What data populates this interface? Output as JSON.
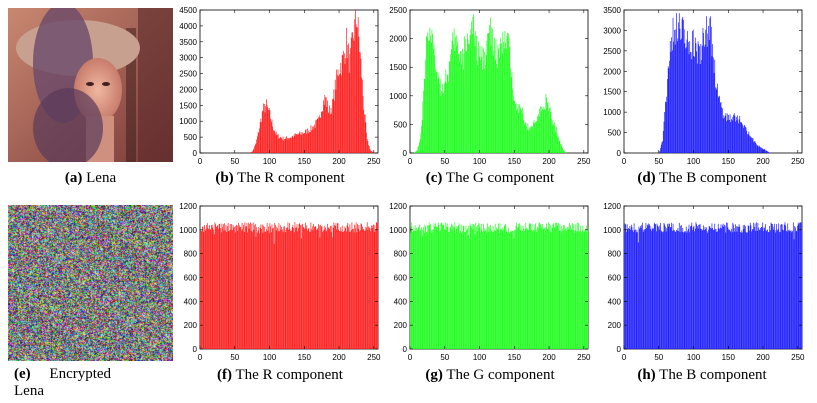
{
  "colors": {
    "red": "#ff2020",
    "green": "#20ff20",
    "blue": "#2020ff",
    "axis": "#000000"
  },
  "images": [
    {
      "id": "a",
      "tag": "(a)",
      "label": "Lena",
      "kind": "photo-lena"
    },
    {
      "id": "e",
      "tag": "(e)",
      "label": "Encrypted",
      "label2": "Lena",
      "kind": "photo-noise"
    }
  ],
  "chart_data": [
    {
      "id": "b",
      "tag": "(b)",
      "caption": "The R component",
      "type": "bar",
      "color": "#ff2020",
      "xlim": [
        0,
        256
      ],
      "xticks": [
        0,
        50,
        100,
        150,
        200,
        250
      ],
      "ylim": [
        0,
        4500
      ],
      "yticks": [
        0,
        500,
        1000,
        1500,
        2000,
        2500,
        3000,
        3500,
        4000,
        4500
      ],
      "x": [
        0,
        40,
        60,
        70,
        75,
        80,
        85,
        90,
        95,
        100,
        105,
        110,
        120,
        130,
        140,
        150,
        160,
        170,
        175,
        180,
        185,
        190,
        195,
        200,
        205,
        210,
        215,
        220,
        225,
        228,
        232,
        235,
        240,
        245,
        250,
        255
      ],
      "y": [
        0,
        0,
        0,
        0,
        50,
        300,
        800,
        1350,
        1500,
        1200,
        800,
        550,
        450,
        500,
        580,
        650,
        780,
        1000,
        1500,
        1750,
        1300,
        1500,
        2200,
        2700,
        2900,
        3500,
        2800,
        3700,
        4300,
        3600,
        2500,
        1500,
        400,
        80,
        0,
        0
      ]
    },
    {
      "id": "c",
      "tag": "(c)",
      "caption": "The G component",
      "type": "bar",
      "color": "#20ff20",
      "xlim": [
        0,
        256
      ],
      "xticks": [
        0,
        50,
        100,
        150,
        200,
        250
      ],
      "ylim": [
        0,
        2500
      ],
      "yticks": [
        0,
        500,
        1000,
        1500,
        2000,
        2500
      ],
      "x": [
        0,
        5,
        10,
        15,
        20,
        25,
        30,
        35,
        40,
        45,
        50,
        55,
        60,
        65,
        70,
        75,
        80,
        85,
        90,
        95,
        100,
        105,
        110,
        115,
        120,
        125,
        130,
        135,
        140,
        145,
        150,
        155,
        160,
        165,
        170,
        175,
        180,
        185,
        190,
        195,
        200,
        205,
        210,
        215,
        220,
        225,
        230,
        240,
        255
      ],
      "y": [
        0,
        0,
        50,
        300,
        1200,
        2300,
        2000,
        1600,
        1400,
        1100,
        1300,
        1400,
        1800,
        2000,
        1700,
        1600,
        1950,
        2100,
        2200,
        1800,
        1700,
        1650,
        1900,
        2150,
        1800,
        1700,
        1800,
        1950,
        2000,
        1400,
        1000,
        800,
        750,
        500,
        450,
        500,
        520,
        700,
        800,
        900,
        750,
        550,
        400,
        200,
        50,
        0,
        0,
        0,
        0
      ]
    },
    {
      "id": "d",
      "tag": "(d)",
      "caption": "The B component",
      "type": "bar",
      "color": "#2020ff",
      "xlim": [
        0,
        256
      ],
      "xticks": [
        0,
        50,
        100,
        150,
        200,
        250
      ],
      "ylim": [
        0,
        3500
      ],
      "yticks": [
        0,
        500,
        1000,
        1500,
        2000,
        2500,
        3000,
        3500
      ],
      "x": [
        0,
        40,
        45,
        50,
        55,
        60,
        65,
        70,
        75,
        80,
        85,
        90,
        95,
        100,
        105,
        110,
        115,
        120,
        125,
        130,
        135,
        140,
        145,
        150,
        155,
        160,
        165,
        170,
        175,
        180,
        185,
        190,
        195,
        200,
        205,
        210,
        220,
        255
      ],
      "y": [
        0,
        0,
        0,
        0,
        300,
        1300,
        2500,
        2900,
        3100,
        3000,
        2950,
        2900,
        2750,
        2600,
        2500,
        2550,
        2850,
        3000,
        2900,
        2000,
        1400,
        1050,
        900,
        850,
        900,
        850,
        800,
        750,
        600,
        450,
        350,
        200,
        150,
        100,
        50,
        0,
        0,
        0
      ]
    },
    {
      "id": "f",
      "tag": "(f)",
      "caption": "The R component",
      "type": "bar",
      "color": "#ff2020",
      "xlim": [
        0,
        256
      ],
      "xticks": [
        0,
        50,
        100,
        150,
        200,
        250
      ],
      "ylim": [
        0,
        1200
      ],
      "yticks": [
        0,
        200,
        400,
        600,
        800,
        1000,
        1200
      ],
      "uniform": 1020
    },
    {
      "id": "g",
      "tag": "(g)",
      "caption": "The G component",
      "type": "bar",
      "color": "#20ff20",
      "xlim": [
        0,
        256
      ],
      "xticks": [
        0,
        50,
        100,
        150,
        200,
        250
      ],
      "ylim": [
        0,
        1200
      ],
      "yticks": [
        0,
        200,
        400,
        600,
        800,
        1000,
        1200
      ],
      "uniform": 1020
    },
    {
      "id": "h",
      "tag": "(h)",
      "caption": "The B component",
      "type": "bar",
      "color": "#2020ff",
      "xlim": [
        0,
        256
      ],
      "xticks": [
        0,
        50,
        100,
        150,
        200,
        250
      ],
      "ylim": [
        0,
        1200
      ],
      "yticks": [
        0,
        200,
        400,
        600,
        800,
        1000,
        1200
      ],
      "uniform": 1020
    }
  ]
}
